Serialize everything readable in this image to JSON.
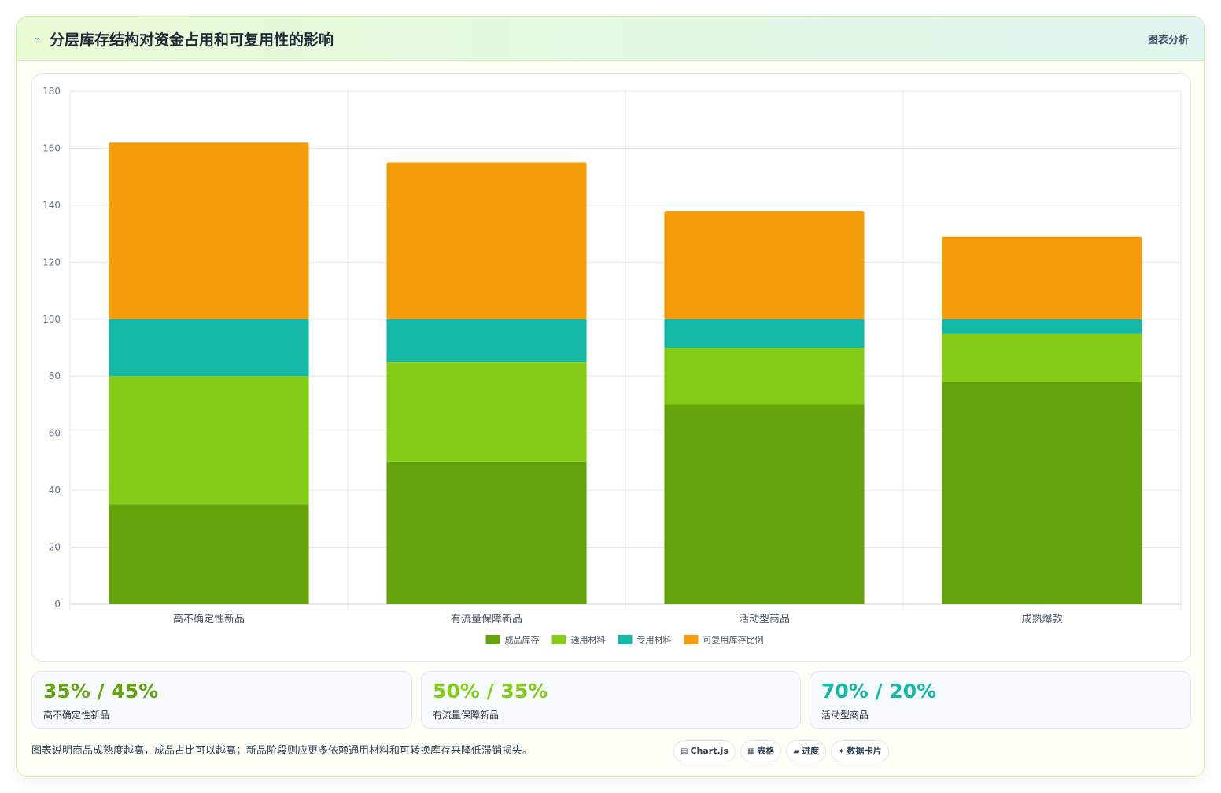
{
  "header": {
    "icon": "pulse-icon",
    "title": "分层库存结构对资金占用和可复用性的影响",
    "tag": "图表分析"
  },
  "chart_data": {
    "type": "bar",
    "stacked": true,
    "categories": [
      "高不确定性新品",
      "有流量保障新品",
      "活动型商品",
      "成熟爆款"
    ],
    "series": [
      {
        "name": "成品库存",
        "color": "#65a30d",
        "values": [
          35,
          50,
          70,
          78
        ]
      },
      {
        "name": "通用材料",
        "color": "#84cc16",
        "values": [
          45,
          35,
          20,
          17
        ]
      },
      {
        "name": "专用材料",
        "color": "#14b8a6",
        "values": [
          20,
          15,
          10,
          5
        ]
      },
      {
        "name": "可复用库存比例",
        "color": "#f59e0b",
        "values": [
          62,
          55,
          38,
          29
        ]
      }
    ],
    "ylim": [
      0,
      180
    ],
    "yticks": [
      0,
      20,
      40,
      60,
      80,
      100,
      120,
      140,
      160,
      180
    ],
    "grid": true,
    "legend_position": "bottom"
  },
  "stats": [
    {
      "value": "35% / 45%",
      "label": "高不确定性新品",
      "color": "#65a30d"
    },
    {
      "value": "50% / 35%",
      "label": "有流量保障新品",
      "color": "#84cc16"
    },
    {
      "value": "70% / 20%",
      "label": "活动型商品",
      "color": "#14b8a6"
    }
  ],
  "footer": {
    "note": "图表说明商品成熟度越高，成品占比可以越高；新品阶段则应更多依赖通用材料和可转换库存来降低滞销损失。",
    "pills": [
      {
        "icon": "▤",
        "label": "Chart.js"
      },
      {
        "icon": "▦",
        "label": "表格"
      },
      {
        "icon": "▰",
        "label": "进度"
      },
      {
        "icon": "✦",
        "label": "数据卡片"
      }
    ]
  }
}
